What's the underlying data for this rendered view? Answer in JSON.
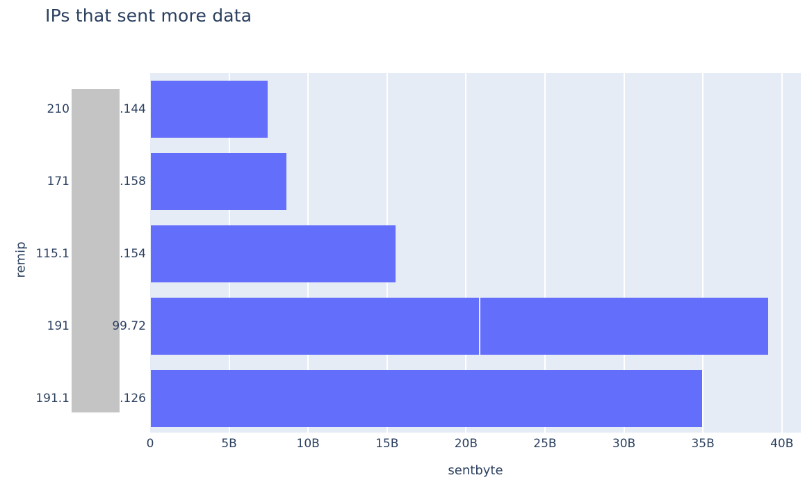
{
  "chart_data": {
    "type": "bar",
    "orientation": "horizontal",
    "title": "IPs that sent more data",
    "xlabel": "sentbyte",
    "ylabel": "remip",
    "categories": [
      {
        "visible_left": "210",
        "visible_right": ".144"
      },
      {
        "visible_left": "171",
        "visible_right": ".158"
      },
      {
        "visible_left": "115.1",
        "visible_right": ".154"
      },
      {
        "visible_left": "191",
        "visible_right": "99.72"
      },
      {
        "visible_left": "191.1",
        "visible_right": ".126"
      }
    ],
    "series": [
      {
        "name": "sentbyte",
        "totals_billions": [
          7.4,
          8.6,
          15.5,
          39.1,
          34.9
        ],
        "segments_billions": [
          [
            7.4
          ],
          [
            8.6
          ],
          [
            15.5
          ],
          [
            20.8,
            18.3
          ],
          [
            34.9
          ]
        ]
      }
    ],
    "xticks": [
      {
        "value": 0,
        "label": "0"
      },
      {
        "value": 5,
        "label": "5B"
      },
      {
        "value": 10,
        "label": "10B"
      },
      {
        "value": 15,
        "label": "15B"
      },
      {
        "value": 20,
        "label": "20B"
      },
      {
        "value": 25,
        "label": "25B"
      },
      {
        "value": 30,
        "label": "30B"
      },
      {
        "value": 35,
        "label": "35B"
      },
      {
        "value": 40,
        "label": "40B"
      }
    ],
    "xlim": [
      0,
      41.2
    ],
    "grid": {
      "lines": "vertical",
      "color": "#ffffff"
    },
    "legend": "none",
    "colors": {
      "bar": "#636efa",
      "plot_background": "#e5ecf6",
      "text": "#2a3f5f",
      "segment_divider": "#e6e9fc"
    }
  },
  "redaction_overlay": {
    "color": "#c4c4c4"
  }
}
